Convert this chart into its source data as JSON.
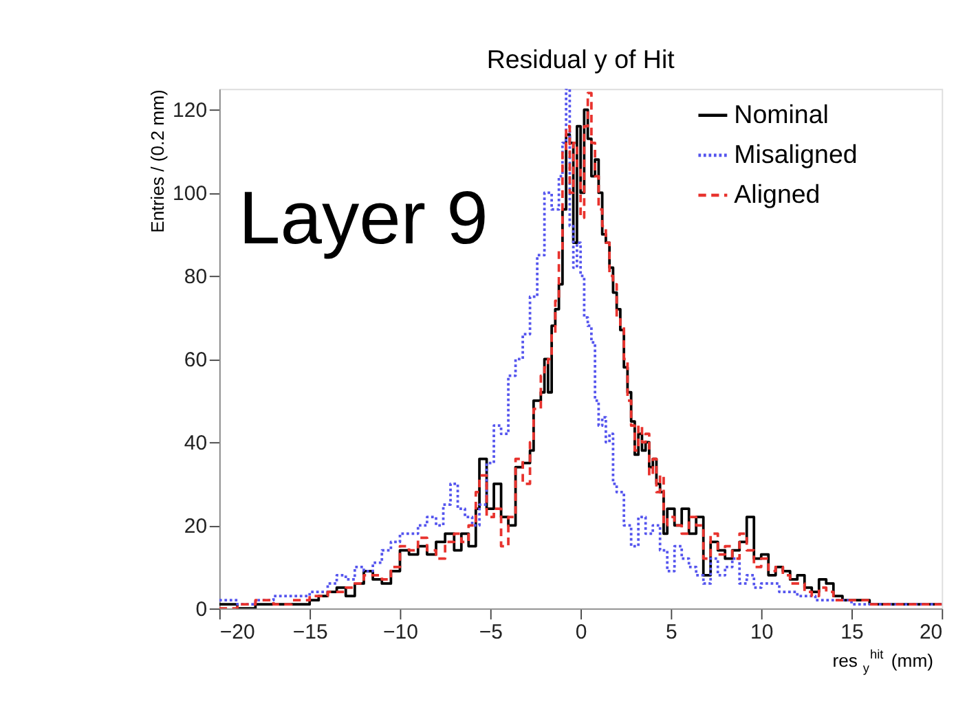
{
  "chart_data": {
    "type": "step",
    "title": "Residual y of Hit",
    "xlabel": "res$_{y}$$^{hit}$ (mm)",
    "ylabel": "Entries / (0.2 mm)",
    "annotations": [
      "Layer 9"
    ],
    "xlim": [
      -20,
      20
    ],
    "ylim": [
      0,
      125
    ],
    "xticks": [
      -20,
      -15,
      -10,
      -5,
      0,
      5,
      10,
      15,
      20
    ],
    "yticks": [
      0,
      20,
      40,
      60,
      80,
      100,
      120
    ],
    "grid": false,
    "legend": "top right",
    "series": [
      {
        "name": "Nominal",
        "color": "#000000",
        "line_style": "solid",
        "x": [
          -20,
          -19,
          -18,
          -17,
          -16,
          -15,
          -14.5,
          -14,
          -13.5,
          -13,
          -12.5,
          -12,
          -11.5,
          -11,
          -10.5,
          -10,
          -9.5,
          -9,
          -8.5,
          -8,
          -7.5,
          -7,
          -6.6,
          -6.2,
          -5.8,
          -5.6,
          -5.2,
          -4.8,
          -4.4,
          -4,
          -3.6,
          -3.2,
          -2.8,
          -2.6,
          -2.2,
          -2,
          -1.8,
          -1.6,
          -1.4,
          -1.2,
          -1,
          -0.8,
          -0.6,
          -0.4,
          -0.2,
          0,
          0.2,
          0.4,
          0.6,
          0.8,
          1,
          1.2,
          1.4,
          1.6,
          1.8,
          2,
          2.2,
          2.4,
          2.6,
          2.8,
          3,
          3.2,
          3.4,
          3.6,
          3.8,
          4,
          4.2,
          4.4,
          4.6,
          4.8,
          5.2,
          5.6,
          6,
          6.4,
          6.8,
          7.2,
          7.6,
          8,
          8.4,
          8.8,
          9.2,
          9.6,
          10,
          10.4,
          10.8,
          11.2,
          11.6,
          12,
          12.4,
          12.8,
          13.2,
          13.6,
          14,
          14.5,
          15,
          16,
          17,
          18,
          19,
          20
        ],
        "values": [
          1,
          0,
          1,
          1,
          1,
          2,
          3,
          4,
          5,
          3,
          6,
          9,
          7,
          6,
          9,
          14,
          13,
          15,
          13,
          16,
          18,
          14,
          18,
          15,
          24,
          36,
          24,
          30,
          22,
          20,
          34,
          35,
          38,
          50,
          52,
          60,
          52,
          68,
          72,
          78,
          96,
          114,
          112,
          88,
          116,
          100,
          120,
          113,
          104,
          108,
          100,
          90,
          88,
          82,
          76,
          72,
          67,
          58,
          52,
          45,
          37,
          42,
          38,
          40,
          34,
          36,
          30,
          28,
          18,
          24,
          20,
          24,
          18,
          22,
          8,
          16,
          14,
          12,
          14,
          16,
          22,
          12,
          13,
          8,
          10,
          9,
          7,
          8,
          5,
          4,
          7,
          6,
          3,
          2,
          2,
          1,
          1,
          1,
          1,
          1
        ]
      },
      {
        "name": "Misaligned",
        "color": "#5555ee",
        "line_style": "dotted",
        "x": [
          -20,
          -19,
          -18,
          -17,
          -16,
          -15,
          -14,
          -13.5,
          -13,
          -12.5,
          -12,
          -11.5,
          -11,
          -10.5,
          -10,
          -9.5,
          -9,
          -8.5,
          -8,
          -7.6,
          -7.2,
          -6.8,
          -6.4,
          -6,
          -5.6,
          -5.2,
          -4.8,
          -4.4,
          -4,
          -3.6,
          -3.2,
          -2.8,
          -2.4,
          -2,
          -1.6,
          -1.2,
          -1,
          -0.8,
          -0.6,
          -0.4,
          -0.2,
          0,
          0.2,
          0.4,
          0.6,
          0.8,
          1,
          1.2,
          1.4,
          1.6,
          1.8,
          2,
          2.4,
          2.8,
          3.2,
          3.6,
          4,
          4.4,
          4.8,
          5.2,
          5.6,
          6,
          6.4,
          6.8,
          7.2,
          7.6,
          8,
          8.4,
          8.8,
          9.2,
          9.6,
          10,
          10.5,
          11,
          11.5,
          12,
          12.5,
          13,
          14,
          15,
          16,
          17,
          18,
          19,
          20
        ],
        "values": [
          2,
          1,
          2,
          3,
          3,
          4,
          6,
          8,
          7,
          10,
          9,
          11,
          14,
          16,
          18,
          18,
          20,
          22,
          20,
          25,
          30,
          24,
          22,
          20,
          25,
          35,
          44,
          42,
          56,
          60,
          66,
          75,
          85,
          100,
          96,
          104,
          112,
          125,
          92,
          82,
          88,
          80,
          70,
          68,
          64,
          50,
          44,
          46,
          40,
          42,
          30,
          28,
          20,
          15,
          22,
          18,
          20,
          14,
          9,
          15,
          12,
          10,
          8,
          6,
          12,
          8,
          10,
          12,
          6,
          8,
          5,
          6,
          6,
          4,
          4,
          3,
          3,
          2,
          2,
          1,
          1,
          1,
          1,
          1,
          1
        ]
      },
      {
        "name": "Aligned",
        "color": "#e8332e",
        "line_style": "dashed",
        "x": [
          -20,
          -19,
          -18,
          -17,
          -16,
          -15,
          -14,
          -13.5,
          -13,
          -12.5,
          -12,
          -11.5,
          -11,
          -10.5,
          -10,
          -9.5,
          -9,
          -8.5,
          -8,
          -7.5,
          -7,
          -6.6,
          -6.2,
          -5.8,
          -5.6,
          -5.2,
          -4.8,
          -4.4,
          -4,
          -3.6,
          -3.2,
          -2.8,
          -2.6,
          -2.2,
          -2,
          -1.8,
          -1.6,
          -1.4,
          -1.2,
          -1,
          -0.8,
          -0.6,
          -0.4,
          -0.2,
          0,
          0.2,
          0.4,
          0.6,
          0.8,
          1,
          1.2,
          1.4,
          1.6,
          1.8,
          2,
          2.2,
          2.4,
          2.6,
          2.8,
          3,
          3.2,
          3.4,
          3.6,
          3.8,
          4,
          4.2,
          4.4,
          4.6,
          4.8,
          5.2,
          5.6,
          6,
          6.4,
          6.8,
          7.2,
          7.6,
          8,
          8.4,
          8.8,
          9.2,
          9.6,
          10,
          10.4,
          10.8,
          11.2,
          11.6,
          12,
          12.4,
          12.8,
          13.2,
          13.6,
          14,
          14.5,
          15,
          16,
          17,
          18,
          19,
          20
        ],
        "values": [
          0,
          1,
          2,
          1,
          2,
          3,
          4,
          4,
          5,
          6,
          8,
          8,
          7,
          10,
          15,
          14,
          17,
          14,
          12,
          16,
          18,
          16,
          20,
          28,
          32,
          22,
          24,
          15,
          22,
          36,
          30,
          40,
          48,
          56,
          58,
          60,
          66,
          74,
          86,
          110,
          116,
          100,
          112,
          106,
          94,
          116,
          124,
          112,
          104,
          96,
          92,
          88,
          80,
          78,
          70,
          68,
          60,
          50,
          44,
          38,
          44,
          40,
          42,
          32,
          36,
          28,
          32,
          20,
          22,
          20,
          18,
          22,
          20,
          12,
          18,
          13,
          15,
          12,
          18,
          14,
          10,
          12,
          9,
          10,
          8,
          6,
          6,
          4,
          3,
          5,
          4,
          2,
          2,
          2,
          1,
          1,
          1,
          1,
          1
        ]
      }
    ]
  }
}
